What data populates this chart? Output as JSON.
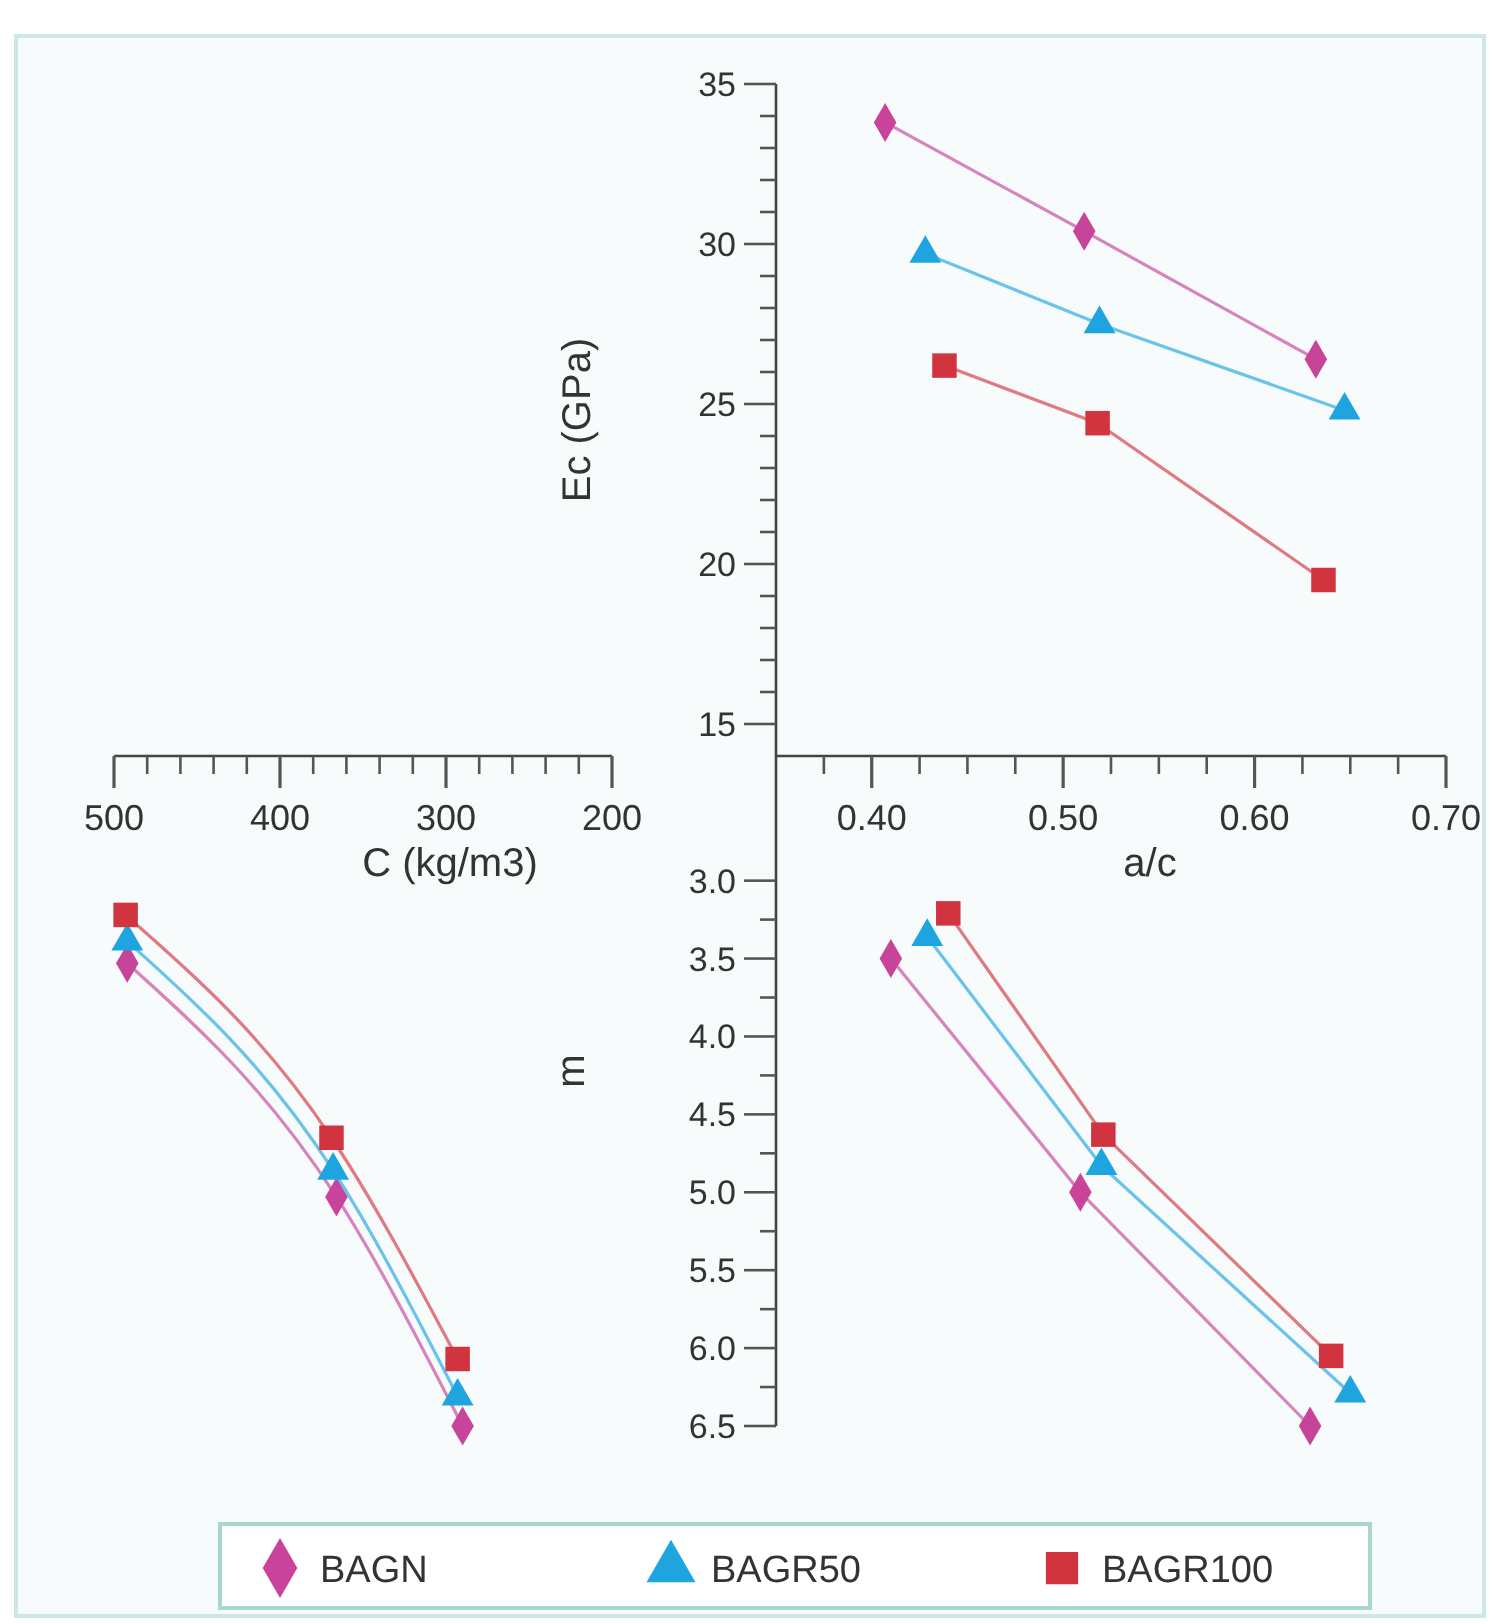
{
  "chart_data": [
    {
      "type": "line",
      "xlabel": "a/c",
      "ylabel": "Ec (GPa)",
      "xlim": [
        0.35,
        0.7
      ],
      "ylim": [
        14,
        35
      ],
      "legend": "bottom",
      "line_style": "solid",
      "xticks": [
        {
          "value": 0.375,
          "label": null
        },
        {
          "value": 0.4,
          "label": "0.40"
        },
        {
          "value": 0.425,
          "label": null
        },
        {
          "value": 0.45,
          "label": null
        },
        {
          "value": 0.475,
          "label": null
        },
        {
          "value": 0.5,
          "label": "0.50"
        },
        {
          "value": 0.525,
          "label": null
        },
        {
          "value": 0.55,
          "label": null
        },
        {
          "value": 0.575,
          "label": null
        },
        {
          "value": 0.6,
          "label": "0.60"
        },
        {
          "value": 0.625,
          "label": null
        },
        {
          "value": 0.65,
          "label": null
        },
        {
          "value": 0.675,
          "label": null
        },
        {
          "value": 0.7,
          "label": "0.70"
        }
      ],
      "yticks": [
        15,
        {
          "value": 16,
          "label": null
        },
        {
          "value": 17,
          "label": null
        },
        {
          "value": 18,
          "label": null
        },
        {
          "value": 19,
          "label": null
        },
        20,
        {
          "value": 21,
          "label": null
        },
        {
          "value": 22,
          "label": null
        },
        {
          "value": 23,
          "label": null
        },
        {
          "value": 24,
          "label": null
        },
        25,
        {
          "value": 26,
          "label": null
        },
        {
          "value": 27,
          "label": null
        },
        {
          "value": 28,
          "label": null
        },
        {
          "value": 29,
          "label": null
        },
        30,
        {
          "value": 31,
          "label": null
        },
        {
          "value": 32,
          "label": null
        },
        {
          "value": 33,
          "label": null
        },
        {
          "value": 34,
          "label": null
        },
        35
      ],
      "series": [
        {
          "name": "BAGN",
          "color": "#c8449a",
          "marker": "diamond",
          "x": [
            0.407,
            0.511,
            0.632
          ],
          "values": [
            33.8,
            30.4,
            26.4
          ]
        },
        {
          "name": "BAGR50",
          "color": "#1ea5e0",
          "marker": "triangle",
          "x": [
            0.428,
            0.519,
            0.647
          ],
          "values": [
            29.7,
            27.5,
            24.8
          ]
        },
        {
          "name": "BAGR100",
          "color": "#d2343f",
          "marker": "square",
          "x": [
            0.438,
            0.518,
            0.636
          ],
          "values": [
            26.2,
            24.4,
            19.5
          ]
        }
      ]
    },
    {
      "type": "line",
      "xlabel": "C (kg/m3)",
      "xlim": [
        500,
        200
      ],
      "ylim": [
        6.5,
        2.2
      ],
      "tick_labels": "x",
      "line_style": "solid",
      "xticks": [
        500,
        {
          "value": 480,
          "label": null
        },
        {
          "value": 460,
          "label": null
        },
        {
          "value": 440,
          "label": null
        },
        {
          "value": 420,
          "label": null
        },
        400,
        {
          "value": 380,
          "label": null
        },
        {
          "value": 360,
          "label": null
        },
        {
          "value": 340,
          "label": null
        },
        {
          "value": 320,
          "label": null
        },
        300,
        {
          "value": 280,
          "label": null
        },
        {
          "value": 260,
          "label": null
        },
        {
          "value": 240,
          "label": null
        },
        {
          "value": 220,
          "label": null
        },
        200
      ],
      "series": [
        {
          "color": "#c8449a",
          "marker": "diamond",
          "x": [
            492,
            366,
            290
          ],
          "values": [
            3.53,
            5.03,
            6.5
          ]
        },
        {
          "color": "#1ea5e0",
          "marker": "triangle",
          "x": [
            492,
            368,
            293
          ],
          "values": [
            3.39,
            4.86,
            6.31
          ]
        },
        {
          "color": "#d2343f",
          "marker": "square",
          "x": [
            493,
            369,
            293
          ],
          "values": [
            3.22,
            4.65,
            6.07
          ]
        }
      ]
    },
    {
      "type": "line",
      "ylabel": "m",
      "xlim": [
        0.35,
        0.7
      ],
      "ylim": [
        6.5,
        2.2
      ],
      "tick_labels": "y",
      "line_style": "solid",
      "yticks": [
        {
          "value": 3.0,
          "label": "3.0"
        },
        {
          "value": 3.25,
          "label": null
        },
        {
          "value": 3.5,
          "label": "3.5"
        },
        {
          "value": 3.75,
          "label": null
        },
        {
          "value": 4.0,
          "label": "4.0"
        },
        {
          "value": 4.25,
          "label": null
        },
        {
          "value": 4.5,
          "label": "4.5"
        },
        {
          "value": 4.75,
          "label": null
        },
        {
          "value": 5.0,
          "label": "5.0"
        },
        {
          "value": 5.25,
          "label": null
        },
        {
          "value": 5.5,
          "label": "5.5"
        },
        {
          "value": 5.75,
          "label": null
        },
        {
          "value": 6.0,
          "label": "6.0"
        },
        {
          "value": 6.25,
          "label": null
        },
        {
          "value": 6.5,
          "label": "6.5"
        }
      ],
      "series": [
        {
          "color": "#c8449a",
          "marker": "diamond",
          "x": [
            0.41,
            0.509,
            0.629
          ],
          "values": [
            3.5,
            5.0,
            6.5
          ]
        },
        {
          "color": "#1ea5e0",
          "marker": "triangle",
          "x": [
            0.429,
            0.52,
            0.65
          ],
          "values": [
            3.36,
            4.83,
            6.29
          ]
        },
        {
          "color": "#d2343f",
          "marker": "square",
          "x": [
            0.44,
            0.521,
            0.64
          ],
          "values": [
            3.21,
            4.63,
            6.05
          ]
        }
      ]
    }
  ]
}
